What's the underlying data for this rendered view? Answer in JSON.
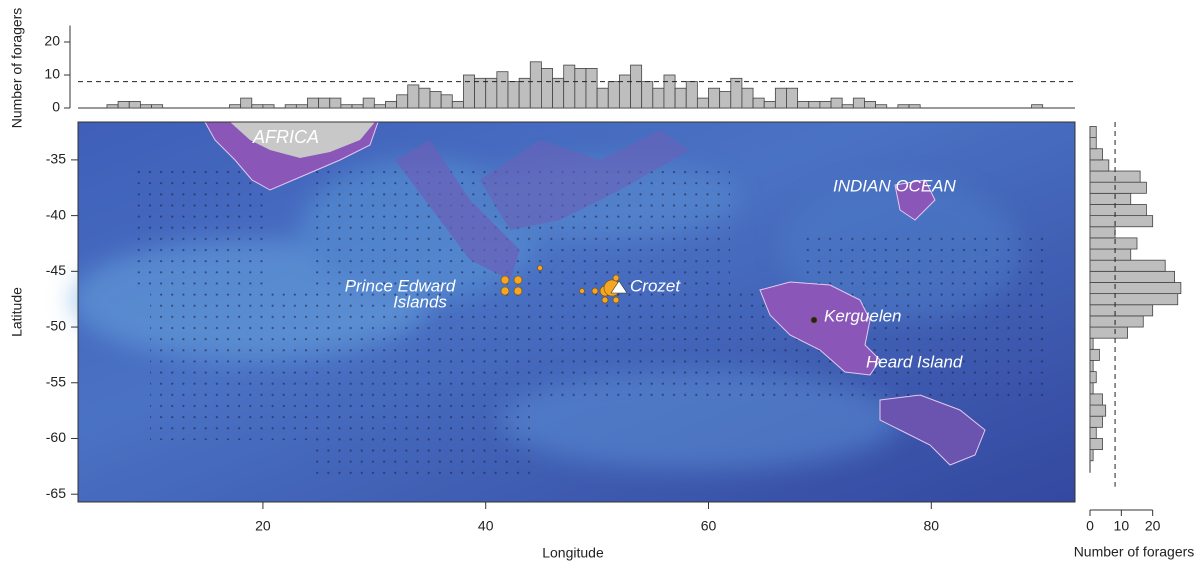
{
  "chart_data": [
    {
      "type": "histogram",
      "orientation": "vertical",
      "ylabel": "Number of foragers",
      "color": "#bebebe",
      "bins": [
        6,
        7,
        8,
        9,
        10,
        11,
        12,
        13,
        14,
        15,
        16,
        17,
        18,
        19,
        20,
        21,
        22,
        23,
        24,
        25,
        26,
        27,
        28,
        29,
        30,
        31,
        32,
        33,
        34,
        35,
        36,
        37,
        38,
        39,
        40,
        41,
        42,
        43,
        44,
        45,
        46,
        47,
        48,
        49,
        50,
        51,
        52,
        53,
        54,
        55,
        56,
        57,
        58,
        59,
        60,
        61,
        62,
        63,
        64,
        65,
        66,
        67,
        68,
        69,
        70,
        71,
        72,
        73,
        74,
        75,
        76,
        77,
        78,
        79,
        80,
        81,
        82,
        83,
        84,
        85,
        86,
        87,
        88,
        89,
        90
      ],
      "values": [
        1,
        2,
        2,
        1,
        1,
        0,
        0,
        0,
        0,
        0,
        0,
        1,
        3,
        1,
        1,
        0,
        1,
        1,
        3,
        3,
        3,
        1,
        1,
        3,
        1,
        2,
        4,
        7,
        6,
        5,
        4,
        2,
        10,
        9,
        9,
        11,
        8,
        9,
        14,
        12,
        9,
        13,
        12,
        12,
        6,
        8,
        10,
        13,
        8,
        6,
        10,
        6,
        8,
        3,
        6,
        5,
        9,
        6,
        3,
        2,
        6,
        6,
        2,
        2,
        2,
        3,
        1,
        3,
        2,
        1,
        0,
        1,
        1,
        0,
        0,
        0,
        0,
        0,
        0,
        0,
        0,
        0,
        0,
        1
      ],
      "xlim": [
        3.4,
        92.9
      ],
      "ylim": [
        0,
        25
      ],
      "yticks": [
        0,
        10,
        20
      ],
      "ref_line": 8
    },
    {
      "type": "map",
      "xlabel": "Longitude",
      "ylabel": "Latitude",
      "xlim": [
        3.4,
        92.9
      ],
      "ylim": [
        -65.7,
        -31.6
      ],
      "xticks": [
        20,
        40,
        60,
        80
      ],
      "yticks": [
        -35,
        -40,
        -45,
        -50,
        -55,
        -60,
        -65
      ],
      "labels": [
        "AFRICA",
        "INDIAN OCEAN",
        "Prince Edward",
        "Islands",
        "Crozet",
        "Kerguelen",
        "Heard Island"
      ]
    },
    {
      "type": "histogram",
      "orientation": "horizontal",
      "xlabel": "Number of foragers",
      "color": "#bebebe",
      "bins": [
        -62,
        -61,
        -60,
        -59,
        -58,
        -57,
        -56,
        -55,
        -54,
        -53,
        -52,
        -51,
        -50,
        -49,
        -48,
        -47,
        -46,
        -45,
        -44,
        -43,
        -42,
        -41,
        -40,
        -39,
        -38,
        -37,
        -36,
        -35,
        -34,
        -33,
        -32
      ],
      "values": [
        1,
        4,
        2,
        4,
        5,
        4,
        1,
        2,
        1,
        3,
        1,
        12,
        17,
        20,
        28,
        29,
        27,
        24,
        13,
        15,
        8,
        20,
        18,
        13,
        18,
        16,
        6,
        4,
        2,
        2
      ],
      "xlim": [
        0,
        30
      ],
      "xticks": [
        0,
        10,
        20
      ],
      "ylim": [
        -65.7,
        -31.6
      ],
      "ref_line": 8
    }
  ]
}
